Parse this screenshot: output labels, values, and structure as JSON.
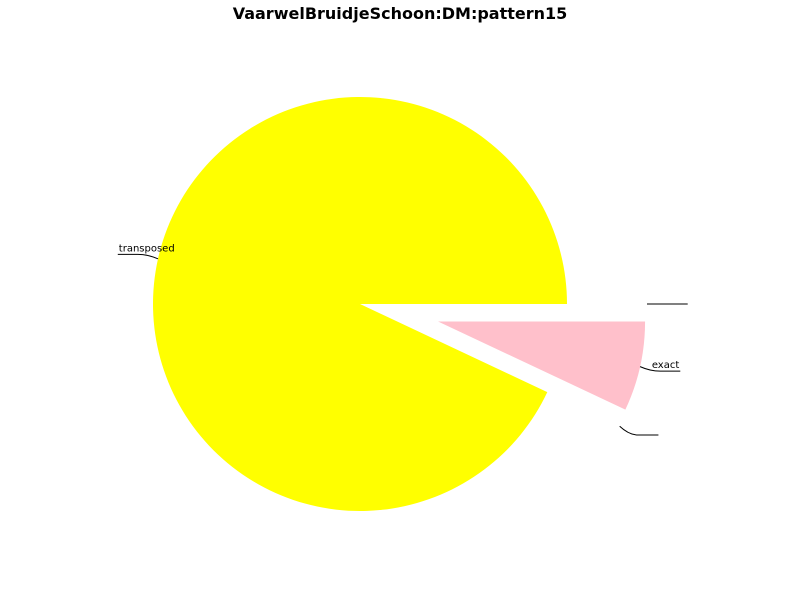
{
  "chart_data": {
    "type": "pie",
    "title": "VaarwelBruidjeSchoon:DM:pattern15",
    "slices": [
      {
        "label": "",
        "value": 0,
        "color": "#ff0000",
        "explode": true
      },
      {
        "label": "exact",
        "value": 7,
        "color": "#ffc0cb",
        "explode": true
      },
      {
        "label": "",
        "value": 0,
        "color": "#0000ff",
        "explode": true
      },
      {
        "label": "transposed",
        "value": 93,
        "color": "#ffff00",
        "explode": false
      }
    ],
    "start_angle_deg": 0,
    "direction": "clockwise",
    "legend": "none"
  }
}
